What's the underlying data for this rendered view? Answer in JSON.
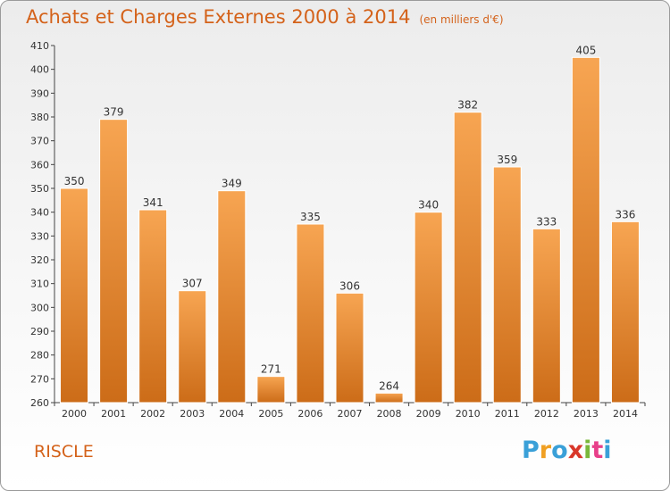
{
  "chart_data": {
    "type": "bar",
    "title": "Achats et Charges Externes 2000 à 2014",
    "unit": "(en milliers d'€)",
    "categories": [
      "2000",
      "2001",
      "2002",
      "2003",
      "2004",
      "2005",
      "2006",
      "2007",
      "2008",
      "2009",
      "2010",
      "2011",
      "2012",
      "2013",
      "2014"
    ],
    "values": [
      350,
      379,
      341,
      307,
      349,
      271,
      335,
      306,
      264,
      340,
      382,
      359,
      333,
      405,
      336
    ],
    "ylim": [
      260,
      410
    ],
    "ytick_step": 10,
    "grid": false,
    "colors": {
      "bar_top": "#f7a552",
      "bar_bottom": "#cc6c18",
      "text": "#d4621a"
    }
  },
  "footer": {
    "city": "RISCLE",
    "brand": "Proxiti",
    "brand_colors": [
      "#3aa0d8",
      "#f0a023",
      "#3aa0d8",
      "#d9372a",
      "#7ab83b",
      "#e8408a",
      "#3aa0d8"
    ]
  }
}
